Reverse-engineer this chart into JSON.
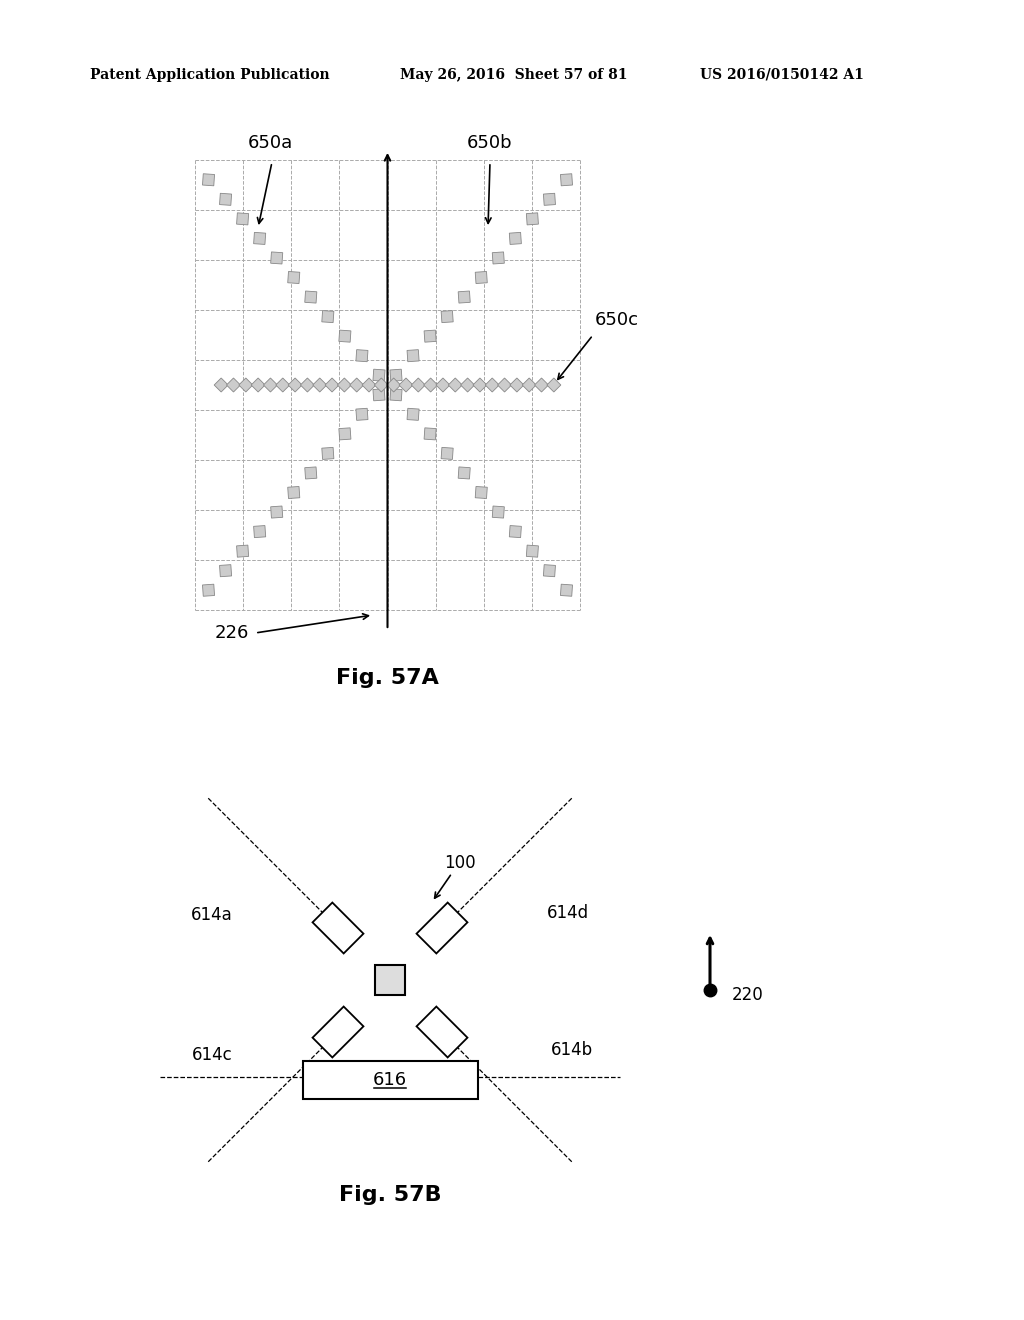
{
  "bg_color": "#ffffff",
  "header_left": "Patent Application Publication",
  "header_mid": "May 26, 2016  Sheet 57 of 81",
  "header_right": "US 2016/0150142 A1",
  "fig57a_title": "Fig. 57A",
  "fig57b_title": "Fig. 57B",
  "label_650a": "650a",
  "label_650b": "650b",
  "label_650c": "650c",
  "label_226": "226",
  "label_100": "100",
  "label_614a": "614a",
  "label_614b": "614b",
  "label_614c": "614c",
  "label_614d": "614d",
  "label_616": "616",
  "label_220": "220",
  "grid_color": "#aaaaaa",
  "line_color": "#000000",
  "diamond_color": "#cccccc",
  "diamond_edge": "#888888"
}
